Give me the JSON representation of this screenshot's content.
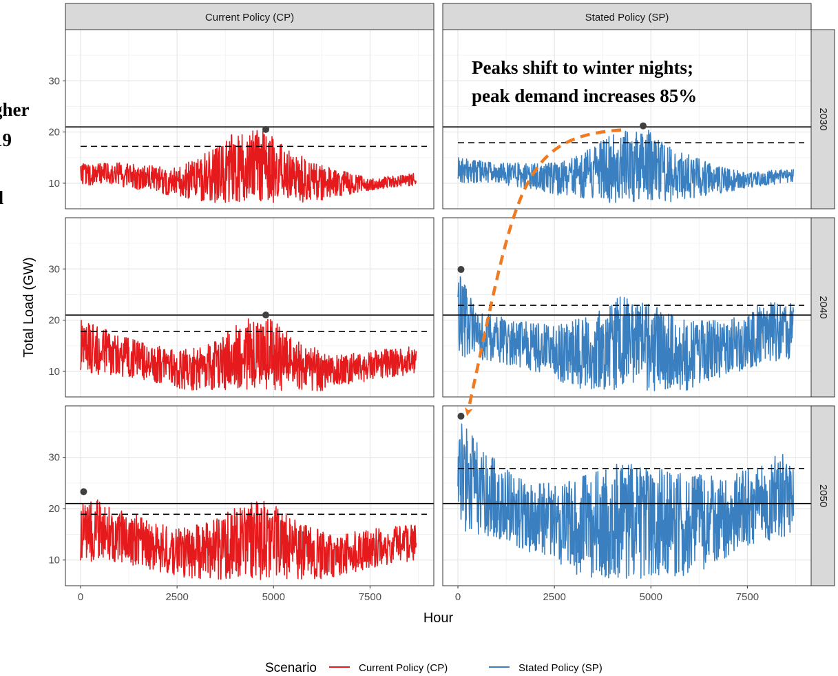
{
  "chart_data": {
    "type": "line",
    "xlabel": "Hour",
    "ylabel": "Total Load (GW)",
    "xlim": [
      0,
      8760
    ],
    "ylim": [
      5,
      40
    ],
    "x_ticks": [
      0,
      2500,
      5000,
      7500
    ],
    "x_tick_labels": [
      "0",
      "2500",
      "5000",
      "7500"
    ],
    "y_ticks": [
      10,
      20,
      30
    ],
    "y_tick_labels": [
      "10",
      "20",
      "30"
    ],
    "grid": true,
    "facet_columns": [
      "Current Policy (CP)",
      "Stated Policy (SP)"
    ],
    "facet_rows": [
      "2030",
      "2040",
      "2050"
    ],
    "reference_solid_line": 21,
    "legend": {
      "position": "bottom",
      "title": "Scenario",
      "entries": [
        {
          "name": "Current Policy (CP)",
          "color": "#e41a1c"
        },
        {
          "name": "Stated Policy (SP)",
          "color": "#3a80c1"
        }
      ]
    },
    "series": [
      {
        "name": "Current Policy (CP)",
        "color": "#e41a1c"
      },
      {
        "name": "Stated Policy (SP)",
        "color": "#3a80c1"
      }
    ],
    "panels": [
      {
        "column": "Current Policy (CP)",
        "row": "2030",
        "series": "Current Policy (CP)",
        "peak": {
          "hour": 4800,
          "load": 20.5
        },
        "dashed_line": 17.2,
        "profile": {
          "base": 9.0,
          "winter_amp": 3.5,
          "noise": 3.0
        },
        "envelope": [
          {
            "hour": 0,
            "max": 14
          },
          {
            "hour": 1000,
            "max": 14
          },
          {
            "hour": 2500,
            "max": 13
          },
          {
            "hour": 3500,
            "max": 17
          },
          {
            "hour": 4000,
            "max": 20
          },
          {
            "hour": 4800,
            "max": 20.5
          },
          {
            "hour": 5500,
            "max": 16
          },
          {
            "hour": 6500,
            "max": 13
          },
          {
            "hour": 7500,
            "max": 11
          },
          {
            "hour": 8700,
            "max": 12
          }
        ]
      },
      {
        "column": "Stated Policy (SP)",
        "row": "2030",
        "series": "Stated Policy (SP)",
        "peak": {
          "hour": 4800,
          "load": 21.2
        },
        "dashed_line": 17.9,
        "profile": {
          "base": 9.5,
          "winter_amp": 3.5,
          "noise": 3.0
        },
        "envelope": [
          {
            "hour": 0,
            "max": 15
          },
          {
            "hour": 1000,
            "max": 14
          },
          {
            "hour": 2500,
            "max": 14
          },
          {
            "hour": 3500,
            "max": 17
          },
          {
            "hour": 4000,
            "max": 20
          },
          {
            "hour": 4800,
            "max": 21.2
          },
          {
            "hour": 5500,
            "max": 17
          },
          {
            "hour": 6500,
            "max": 14
          },
          {
            "hour": 7500,
            "max": 12
          },
          {
            "hour": 8700,
            "max": 13
          }
        ]
      },
      {
        "column": "Current Policy (CP)",
        "row": "2040",
        "series": "Current Policy (CP)",
        "peak": {
          "hour": 4800,
          "load": 21.0
        },
        "dashed_line": 17.8,
        "profile": {
          "base": 8.5,
          "winter_amp": 4.0,
          "noise": 3.5
        },
        "envelope": [
          {
            "hour": 0,
            "max": 20.5
          },
          {
            "hour": 1000,
            "max": 17
          },
          {
            "hour": 2500,
            "max": 14
          },
          {
            "hour": 3500,
            "max": 16
          },
          {
            "hour": 4200,
            "max": 20
          },
          {
            "hour": 4800,
            "max": 21
          },
          {
            "hour": 5500,
            "max": 17
          },
          {
            "hour": 6500,
            "max": 13
          },
          {
            "hour": 7500,
            "max": 14
          },
          {
            "hour": 8700,
            "max": 15
          }
        ]
      },
      {
        "column": "Stated Policy (SP)",
        "row": "2040",
        "series": "Stated Policy (SP)",
        "peak": {
          "hour": 80,
          "load": 29.9
        },
        "dashed_line": 22.9,
        "profile": {
          "base": 10.0,
          "winter_amp": 6.5,
          "noise": 5.0
        },
        "envelope": [
          {
            "hour": 0,
            "max": 29.9
          },
          {
            "hour": 500,
            "max": 22
          },
          {
            "hour": 1500,
            "max": 20
          },
          {
            "hour": 2500,
            "max": 19
          },
          {
            "hour": 3500,
            "max": 21
          },
          {
            "hour": 4200,
            "max": 25
          },
          {
            "hour": 5000,
            "max": 23
          },
          {
            "hour": 6000,
            "max": 20
          },
          {
            "hour": 7000,
            "max": 20
          },
          {
            "hour": 8000,
            "max": 24
          },
          {
            "hour": 8700,
            "max": 24
          }
        ]
      },
      {
        "column": "Current Policy (CP)",
        "row": "2050",
        "series": "Current Policy (CP)",
        "peak": {
          "hour": 80,
          "load": 23.3
        },
        "dashed_line": 18.9,
        "profile": {
          "base": 8.5,
          "winter_amp": 4.5,
          "noise": 4.0
        },
        "envelope": [
          {
            "hour": 0,
            "max": 23.3
          },
          {
            "hour": 1000,
            "max": 20
          },
          {
            "hour": 2500,
            "max": 16
          },
          {
            "hour": 3500,
            "max": 18
          },
          {
            "hour": 4200,
            "max": 21
          },
          {
            "hour": 4800,
            "max": 22
          },
          {
            "hour": 5500,
            "max": 18
          },
          {
            "hour": 6500,
            "max": 15
          },
          {
            "hour": 7500,
            "max": 16
          },
          {
            "hour": 8700,
            "max": 17
          }
        ]
      },
      {
        "column": "Stated Policy (SP)",
        "row": "2050",
        "series": "Stated Policy (SP)",
        "peak": {
          "hour": 80,
          "load": 38.0
        },
        "dashed_line": 27.8,
        "profile": {
          "base": 11.0,
          "winter_amp": 9.0,
          "noise": 6.0
        },
        "envelope": [
          {
            "hour": 0,
            "max": 38
          },
          {
            "hour": 500,
            "max": 33
          },
          {
            "hour": 1500,
            "max": 26
          },
          {
            "hour": 2500,
            "max": 25
          },
          {
            "hour": 3500,
            "max": 27
          },
          {
            "hour": 4200,
            "max": 29
          },
          {
            "hour": 5000,
            "max": 28
          },
          {
            "hour": 6000,
            "max": 27
          },
          {
            "hour": 7000,
            "max": 26
          },
          {
            "hour": 8000,
            "max": 30
          },
          {
            "hour": 8700,
            "max": 31
          }
        ]
      }
    ],
    "annotations": {
      "callout_lines": [
        "Peaks shift to winter nights;",
        "peak demand increases 85%"
      ],
      "arrow_color": "#f07a22",
      "arrow_from": {
        "column": "Stated Policy (SP)",
        "row": "2030",
        "hour": 4800,
        "load": 21.2
      },
      "arrow_to": {
        "column": "Stated Policy (SP)",
        "row": "2050",
        "hour": 80,
        "load": 38.0
      },
      "clipped_side_text": [
        "gher",
        "19",
        "d"
      ]
    }
  }
}
